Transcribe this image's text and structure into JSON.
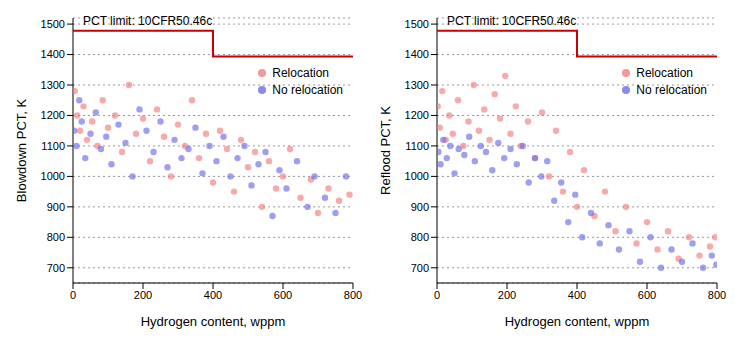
{
  "chart_data": [
    {
      "type": "scatter",
      "x_label": "Hydrogen content, wppm",
      "y_label": "Blowdown PCT, K",
      "xlim": [
        0,
        800
      ],
      "ylim": [
        650,
        1520
      ],
      "xticks": [
        0,
        200,
        400,
        600,
        800
      ],
      "yticks": [
        700,
        800,
        900,
        1000,
        1100,
        1200,
        1300,
        1400,
        1500
      ],
      "grid": true,
      "legend": "upper right",
      "reference_line": {
        "label": "PCT limit: 10CFR50.46c",
        "color": "#cc0000",
        "x": [
          0,
          400,
          400,
          800
        ],
        "values": [
          1478,
          1478,
          1394,
          1394
        ]
      },
      "series": [
        {
          "name": "Relocation",
          "color": "#f47c7c",
          "x": [
            5,
            12,
            20,
            30,
            40,
            55,
            70,
            85,
            100,
            120,
            140,
            160,
            180,
            200,
            220,
            240,
            260,
            280,
            300,
            320,
            340,
            360,
            380,
            400,
            420,
            440,
            460,
            480,
            500,
            520,
            540,
            560,
            580,
            600,
            620,
            650,
            680,
            700,
            730,
            760,
            790
          ],
          "values": [
            1280,
            1200,
            1150,
            1230,
            1120,
            1180,
            1100,
            1250,
            1160,
            1200,
            1080,
            1300,
            1140,
            1190,
            1050,
            1220,
            1130,
            1000,
            1170,
            1100,
            1250,
            1060,
            1140,
            980,
            1150,
            1090,
            950,
            1120,
            1030,
            1080,
            900,
            1050,
            960,
            1000,
            1090,
            930,
            990,
            880,
            960,
            920,
            940
          ]
        },
        {
          "name": "No relocation",
          "color": "#6b6bea",
          "x": [
            3,
            10,
            18,
            25,
            35,
            50,
            65,
            80,
            95,
            110,
            130,
            150,
            170,
            190,
            210,
            230,
            250,
            270,
            290,
            310,
            330,
            350,
            370,
            390,
            410,
            430,
            450,
            470,
            490,
            510,
            530,
            550,
            570,
            590,
            610,
            640,
            670,
            690,
            720,
            750,
            780
          ],
          "values": [
            1150,
            1100,
            1250,
            1180,
            1060,
            1140,
            1210,
            1090,
            1130,
            1040,
            1170,
            1110,
            1000,
            1220,
            1150,
            1080,
            1180,
            1030,
            1120,
            1060,
            1090,
            1160,
            1010,
            1100,
            1050,
            1130,
            1000,
            1060,
            1100,
            970,
            1040,
            1080,
            870,
            1020,
            960,
            1050,
            900,
            1000,
            930,
            880,
            1000
          ]
        }
      ]
    },
    {
      "type": "scatter",
      "x_label": "Hydrogen content, wppm",
      "y_label": "Reflood PCT, K",
      "xlim": [
        0,
        800
      ],
      "ylim": [
        650,
        1520
      ],
      "xticks": [
        0,
        200,
        400,
        600,
        800
      ],
      "yticks": [
        700,
        800,
        900,
        1000,
        1100,
        1200,
        1300,
        1400,
        1500
      ],
      "grid": true,
      "legend": "upper right",
      "reference_line": {
        "label": "PCT limit: 10CFR50.46c",
        "color": "#cc0000",
        "x": [
          0,
          400,
          400,
          800
        ],
        "values": [
          1478,
          1478,
          1394,
          1394
        ]
      },
      "series": [
        {
          "name": "Relocation",
          "color": "#f47c7c",
          "x": [
            2,
            8,
            15,
            25,
            35,
            45,
            60,
            75,
            90,
            105,
            120,
            135,
            150,
            165,
            180,
            195,
            210,
            225,
            240,
            260,
            280,
            300,
            320,
            340,
            360,
            380,
            400,
            420,
            450,
            480,
            510,
            540,
            570,
            600,
            630,
            660,
            690,
            720,
            750,
            780,
            795
          ],
          "values": [
            1230,
            1160,
            1280,
            1120,
            1200,
            1140,
            1250,
            1100,
            1180,
            1300,
            1150,
            1220,
            1120,
            1270,
            1190,
            1330,
            1140,
            1230,
            1100,
            1180,
            1060,
            1210,
            1000,
            1150,
            950,
            1080,
            900,
            1020,
            870,
            950,
            820,
            900,
            780,
            850,
            760,
            820,
            730,
            800,
            740,
            770,
            800
          ]
        },
        {
          "name": "No relocation",
          "color": "#6b6bea",
          "x": [
            4,
            10,
            18,
            28,
            38,
            50,
            62,
            78,
            92,
            108,
            125,
            140,
            158,
            175,
            192,
            210,
            228,
            245,
            262,
            280,
            298,
            315,
            335,
            355,
            375,
            395,
            415,
            440,
            465,
            490,
            520,
            550,
            580,
            610,
            640,
            670,
            700,
            730,
            760,
            785,
            798
          ],
          "values": [
            1080,
            1040,
            1120,
            1060,
            1100,
            1010,
            1090,
            1070,
            1130,
            1050,
            1100,
            1080,
            1020,
            1110,
            1060,
            1090,
            1040,
            1100,
            980,
            1060,
            1000,
            1050,
            920,
            980,
            850,
            940,
            800,
            880,
            780,
            840,
            760,
            820,
            720,
            800,
            700,
            760,
            720,
            780,
            700,
            740,
            710
          ]
        }
      ]
    }
  ]
}
